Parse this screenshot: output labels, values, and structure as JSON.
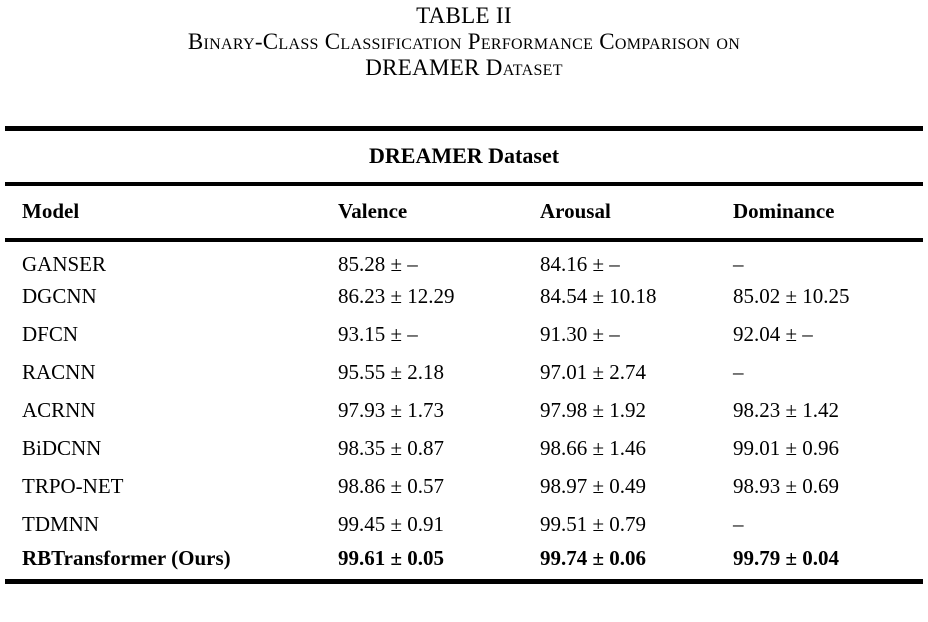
{
  "caption": {
    "label": "TABLE II",
    "line1": "Binary-Class Classification Performance Comparison on",
    "line2": "DREAMER Dataset"
  },
  "table": {
    "dataset_header": "DREAMER Dataset",
    "columns": [
      "Model",
      "Valence",
      "Arousal",
      "Dominance"
    ],
    "rows": [
      {
        "model": "GANSER",
        "valence": "85.28 ± –",
        "arousal": "84.16 ± –",
        "dominance": "–"
      },
      {
        "model": "DGCNN",
        "valence": "86.23 ± 12.29",
        "arousal": "84.54 ± 10.18",
        "dominance": "85.02 ± 10.25"
      },
      {
        "model": "DFCN",
        "valence": "93.15 ± –",
        "arousal": "91.30 ± –",
        "dominance": "92.04 ± –"
      },
      {
        "model": "RACNN",
        "valence": "95.55 ± 2.18",
        "arousal": "97.01 ± 2.74",
        "dominance": "–"
      },
      {
        "model": "ACRNN",
        "valence": "97.93 ± 1.73",
        "arousal": "97.98 ± 1.92",
        "dominance": "98.23 ± 1.42"
      },
      {
        "model": "BiDCNN",
        "valence": "98.35 ± 0.87",
        "arousal": "98.66 ± 1.46",
        "dominance": "99.01 ± 0.96"
      },
      {
        "model": "TRPO-NET",
        "valence": "98.86 ± 0.57",
        "arousal": "98.97 ± 0.49",
        "dominance": "98.93 ± 0.69"
      },
      {
        "model": "TDMNN",
        "valence": "99.45 ± 0.91",
        "arousal": "99.51 ± 0.79",
        "dominance": "–"
      },
      {
        "model": "RBTransformer (Ours)",
        "valence": "99.61 ± 0.05",
        "arousal": "99.74 ± 0.06",
        "dominance": "99.79 ± 0.04"
      }
    ],
    "colors": {
      "text": "#000000",
      "background": "#ffffff",
      "rule": "#000000"
    }
  }
}
